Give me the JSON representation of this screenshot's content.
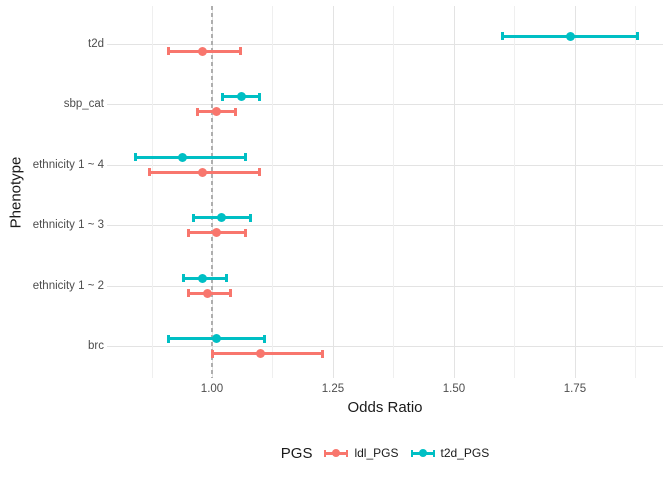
{
  "chart_data": {
    "type": "pointrange",
    "title": "",
    "xlabel": "Odds Ratio",
    "ylabel": "Phenotype",
    "x_tick_values": [
      1.0,
      1.25,
      1.5,
      1.75
    ],
    "x_tick_labels": [
      "1.00",
      "1.25",
      "1.50",
      "1.75"
    ],
    "x_minor_grid_values": [
      0.875,
      1.125,
      1.375,
      1.625,
      1.875
    ],
    "xlim": [
      0.783,
      1.932
    ],
    "reference_line_x": 1.0,
    "grid": "on",
    "legend_position": "bottom",
    "categories": [
      "t2d",
      "sbp_cat",
      "ethnicity 1 ~ 4",
      "ethnicity 1 ~ 3",
      "ethnicity 1 ~ 2",
      "brc"
    ],
    "legend": {
      "title": "PGS",
      "items": [
        {
          "label": "ldl_PGS",
          "color": "#F8766D"
        },
        {
          "label": "t2d_PGS",
          "color": "#00BFC4"
        }
      ]
    },
    "series": [
      {
        "name": "t2d_PGS",
        "color": "#00BFC4",
        "points": [
          {
            "category": "t2d",
            "or": 1.74,
            "lo": 1.6,
            "hi": 1.88
          },
          {
            "category": "sbp_cat",
            "or": 1.06,
            "lo": 1.02,
            "hi": 1.1
          },
          {
            "category": "ethnicity 1 ~ 4",
            "or": 0.94,
            "lo": 0.84,
            "hi": 1.07
          },
          {
            "category": "ethnicity 1 ~ 3",
            "or": 1.02,
            "lo": 0.96,
            "hi": 1.08
          },
          {
            "category": "ethnicity 1 ~ 2",
            "or": 0.98,
            "lo": 0.94,
            "hi": 1.03
          },
          {
            "category": "brc",
            "or": 1.01,
            "lo": 0.91,
            "hi": 1.11
          }
        ]
      },
      {
        "name": "ldl_PGS",
        "color": "#F8766D",
        "points": [
          {
            "category": "t2d",
            "or": 0.98,
            "lo": 0.91,
            "hi": 1.06
          },
          {
            "category": "sbp_cat",
            "or": 1.01,
            "lo": 0.97,
            "hi": 1.05
          },
          {
            "category": "ethnicity 1 ~ 4",
            "or": 0.98,
            "lo": 0.87,
            "hi": 1.1
          },
          {
            "category": "ethnicity 1 ~ 3",
            "or": 1.01,
            "lo": 0.95,
            "hi": 1.07
          },
          {
            "category": "ethnicity 1 ~ 2",
            "or": 0.99,
            "lo": 0.95,
            "hi": 1.04
          },
          {
            "category": "brc",
            "or": 1.1,
            "lo": 1.0,
            "hi": 1.23
          }
        ]
      }
    ]
  }
}
